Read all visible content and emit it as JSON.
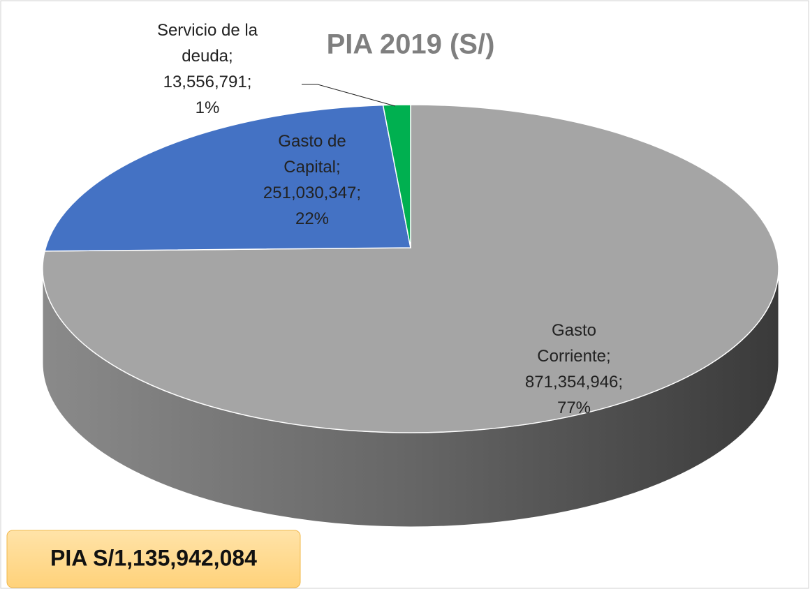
{
  "chart_data": {
    "type": "pie",
    "title": "PIA 2019 (S/)",
    "categories": [
      "Gasto Corriente",
      "Gasto de Capital",
      "Servicio de la deuda"
    ],
    "values": [
      871354946,
      251030347,
      13556791
    ],
    "value_labels": [
      "871,354,946",
      "251,030,347",
      "13,556,791"
    ],
    "percent_labels": [
      "77%",
      "22%",
      "1%"
    ],
    "label_separator": ";",
    "colors": [
      "#a5a5a5",
      "#4472c4",
      "#00b050"
    ],
    "total_label": "PIA S/1,135,942,084"
  }
}
